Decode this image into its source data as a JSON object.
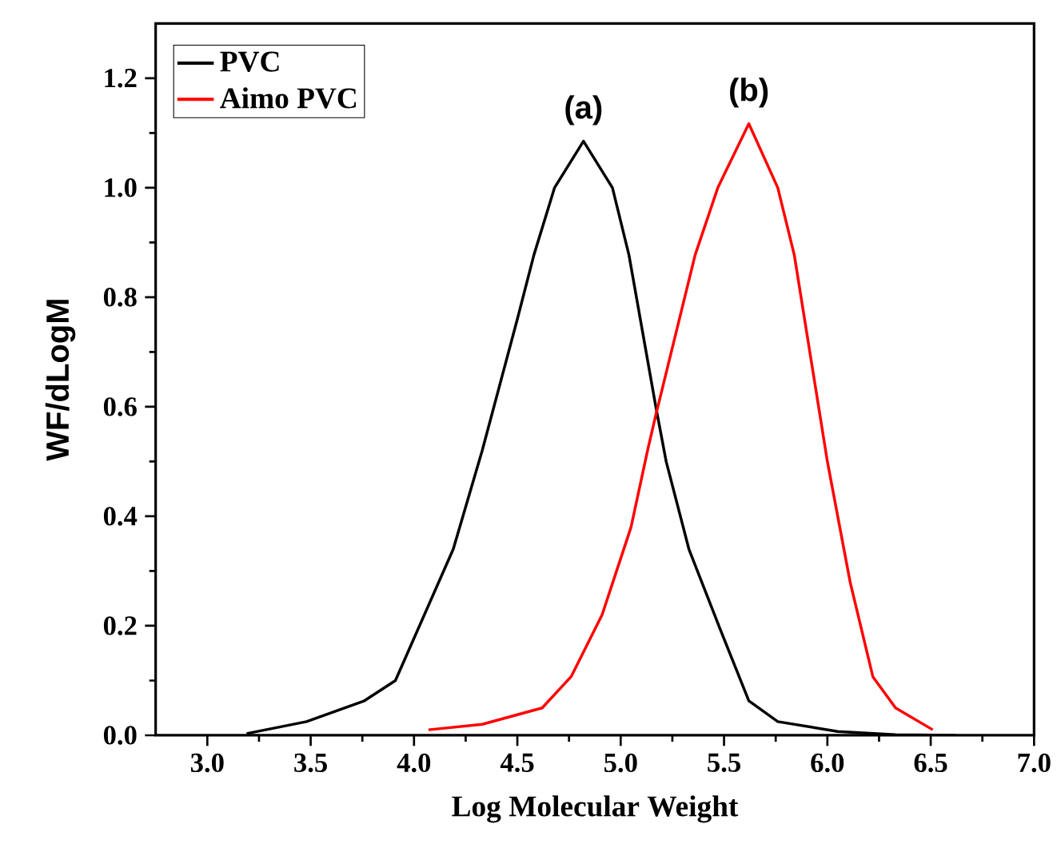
{
  "chart_data": {
    "type": "line",
    "xlabel": "Log Molecular Weight",
    "ylabel": "WF/dLogM",
    "xlim": [
      2.75,
      7.0
    ],
    "ylim": [
      0,
      1.3
    ],
    "xticks": [
      {
        "value": 3.0,
        "label": "3.0"
      },
      {
        "value": 3.5,
        "label": "3.5"
      },
      {
        "value": 4.0,
        "label": "4.0"
      },
      {
        "value": 4.5,
        "label": "4.5"
      },
      {
        "value": 5.0,
        "label": "5.0"
      },
      {
        "value": 5.5,
        "label": "5.5"
      },
      {
        "value": 6.0,
        "label": "6.0"
      },
      {
        "value": 6.5,
        "label": "6.5"
      },
      {
        "value": 7.0,
        "label": "7.0"
      }
    ],
    "yticks": [
      {
        "value": 0.0,
        "label": "0.0"
      },
      {
        "value": 0.2,
        "label": "0.2"
      },
      {
        "value": 0.4,
        "label": "0.4"
      },
      {
        "value": 0.6,
        "label": "0.6"
      },
      {
        "value": 0.8,
        "label": "0.8"
      },
      {
        "value": 1.0,
        "label": "1.0"
      },
      {
        "value": 1.2,
        "label": "1.2"
      }
    ],
    "legend": "top left",
    "grid": false,
    "series": [
      {
        "name": "PVC",
        "color": "#000000",
        "x": [
          3.19,
          3.48,
          3.76,
          3.91,
          4.05,
          4.19,
          4.33,
          4.5,
          4.58,
          4.68,
          4.82,
          4.96,
          5.04,
          5.17,
          5.22,
          5.33,
          5.48,
          5.62,
          5.76,
          6.05,
          6.33,
          6.62
        ],
        "values": [
          0.003,
          0.025,
          0.063,
          0.1,
          0.22,
          0.34,
          0.52,
          0.76,
          0.877,
          1.0,
          1.085,
          1.0,
          0.877,
          0.6,
          0.5,
          0.34,
          0.195,
          0.063,
          0.025,
          0.007,
          0.001,
          0.0
        ]
      },
      {
        "name": "Aimo PVC",
        "color": "#ff0000",
        "x": [
          4.07,
          4.33,
          4.62,
          4.76,
          4.91,
          5.05,
          5.13,
          5.17,
          5.36,
          5.47,
          5.62,
          5.76,
          5.84,
          6.0,
          6.11,
          6.22,
          6.33,
          6.51
        ],
        "values": [
          0.01,
          0.02,
          0.05,
          0.107,
          0.22,
          0.38,
          0.52,
          0.585,
          0.877,
          1.0,
          1.117,
          1.0,
          0.877,
          0.5,
          0.28,
          0.107,
          0.05,
          0.01
        ]
      }
    ],
    "annotations": [
      "(a)",
      "(b)"
    ]
  }
}
